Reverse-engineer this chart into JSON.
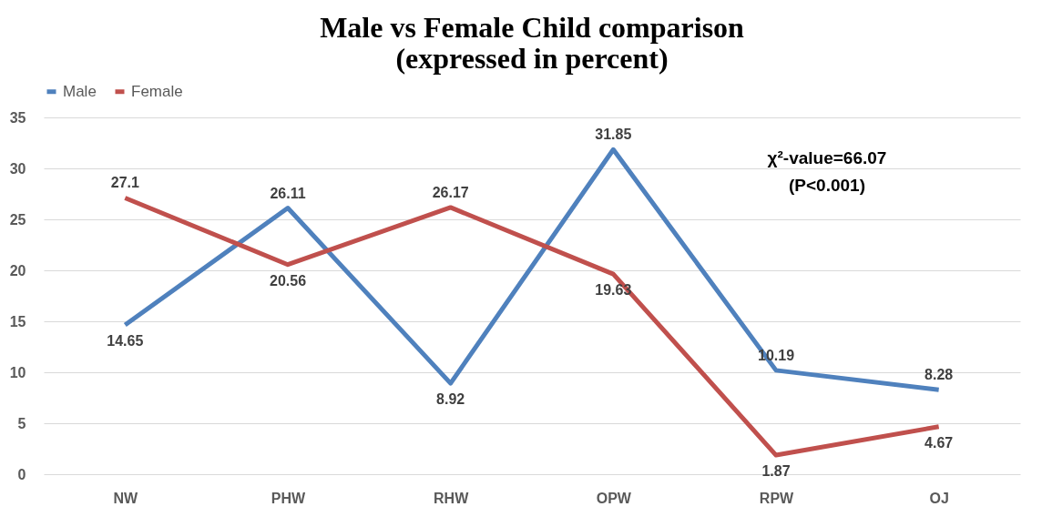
{
  "chart_data": {
    "type": "line",
    "title": [
      "Male vs Female Child comparison",
      "(expressed in percent)"
    ],
    "categories": [
      "NW",
      "PHW",
      "RHW",
      "OPW",
      "RPW",
      "OJ"
    ],
    "series": [
      {
        "name": "Male",
        "color": "#4f81bd",
        "values": [
          14.65,
          26.11,
          8.92,
          31.85,
          10.19,
          8.28
        ]
      },
      {
        "name": "Female",
        "color": "#c0504d",
        "values": [
          27.1,
          20.56,
          26.17,
          19.63,
          1.87,
          4.67
        ]
      }
    ],
    "ylim": [
      0,
      35
    ],
    "yticks": [
      0,
      5,
      10,
      15,
      20,
      25,
      30,
      35
    ],
    "grid": "y",
    "legend": "top",
    "data_labels": true,
    "marker": "none",
    "line_style": "solid",
    "annotations": [
      "χ²-value=66.07",
      "(P<0.001)"
    ]
  }
}
